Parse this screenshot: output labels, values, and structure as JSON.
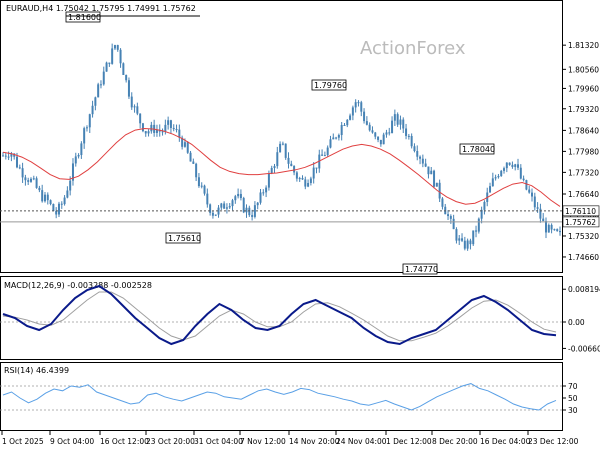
{
  "watermark": "ActionForex",
  "chart_data": {
    "type": "candlestick",
    "symbol_header": "EURAUD,H4  1.75042 1.75795 1.74991 1.75762",
    "price_axis": {
      "min": 1.7425,
      "max": 1.823,
      "ticks": [
        "1.81320",
        "1.80560",
        "1.79960",
        "1.79320",
        "1.78640",
        "1.77980",
        "1.77320",
        "1.76640",
        "1.75980",
        "1.75320",
        "1.74660"
      ],
      "tick_values": [
        1.8132,
        1.8056,
        1.7996,
        1.7932,
        1.7864,
        1.7798,
        1.7732,
        1.7664,
        1.7598,
        1.7532,
        1.7466
      ]
    },
    "x_labels": [
      "1 Oct 2025",
      "9 Oct 04:00",
      "16 Oct 12:00",
      "23 Oct 20:00",
      "31 Oct 04:00",
      "7 Nov 12:00",
      "14 Nov 20:00",
      "24 Nov 04:00",
      "1 Dec 12:00",
      "8 Dec 20:00",
      "16 Dec 04:00",
      "23 Dec 12:00"
    ],
    "pivot_labels": [
      {
        "text": "1.81600",
        "value": 1.816
      },
      {
        "text": "1.79760",
        "value": 1.7976
      },
      {
        "text": "1.78040",
        "value": 1.7804
      },
      {
        "text": "1.75610",
        "value": 1.7561
      },
      {
        "text": "1.74770",
        "value": 1.7477
      }
    ],
    "price_tags": [
      {
        "text": "1.76110",
        "value": 1.7611
      },
      {
        "text": "1.75762",
        "value": 1.75762
      }
    ],
    "close_series": [
      1.7785,
      1.78,
      1.775,
      1.772,
      1.77,
      1.766,
      1.764,
      1.76,
      1.764,
      1.772,
      1.78,
      1.788,
      1.795,
      1.802,
      1.808,
      1.814,
      1.805,
      1.796,
      1.79,
      1.786,
      1.787,
      1.786,
      1.788,
      1.786,
      1.782,
      1.776,
      1.77,
      1.764,
      1.76,
      1.762,
      1.764,
      1.766,
      1.762,
      1.76,
      1.764,
      1.77,
      1.776,
      1.782,
      1.776,
      1.772,
      1.77,
      1.773,
      1.777,
      1.78,
      1.784,
      1.788,
      1.792,
      1.796,
      1.79,
      1.785,
      1.782,
      1.786,
      1.79,
      1.788,
      1.784,
      1.78,
      1.776,
      1.772,
      1.766,
      1.76,
      1.754,
      1.75,
      1.751,
      1.756,
      1.764,
      1.77,
      1.774,
      1.777,
      1.776,
      1.77,
      1.766,
      1.761,
      1.756,
      1.754,
      1.7535
    ],
    "ma_series": [
      1.7795,
      1.779,
      1.778,
      1.7765,
      1.7745,
      1.7725,
      1.7712,
      1.771,
      1.772,
      1.774,
      1.7765,
      1.7795,
      1.7825,
      1.785,
      1.7865,
      1.787,
      1.7868,
      1.7862,
      1.7852,
      1.7838,
      1.782,
      1.7795,
      1.777,
      1.7748,
      1.7735,
      1.7728,
      1.7725,
      1.7725,
      1.7728,
      1.773,
      1.7735,
      1.774,
      1.7748,
      1.776,
      1.7775,
      1.779,
      1.7805,
      1.7815,
      1.782,
      1.7815,
      1.7805,
      1.779,
      1.777,
      1.7748,
      1.7725,
      1.77,
      1.7675,
      1.7655,
      1.764,
      1.7632,
      1.7635,
      1.7648,
      1.7665,
      1.7682,
      1.7695,
      1.77,
      1.769,
      1.767,
      1.7645,
      1.7625
    ],
    "macd": {
      "label": "MACD(12,26,9) -0.003288 -0.002528",
      "ticks": [
        "0.008194",
        "0.00",
        "-0.006604"
      ],
      "tick_values": [
        0.008194,
        0.0,
        -0.006604
      ],
      "min": -0.0085,
      "max": 0.0095,
      "main": [
        0.002,
        0.001,
        -0.001,
        -0.002,
        -0.0005,
        0.003,
        0.006,
        0.008,
        0.009,
        0.007,
        0.004,
        0.001,
        -0.0015,
        -0.004,
        -0.0055,
        -0.0045,
        -0.001,
        0.002,
        0.0045,
        0.003,
        0.0005,
        -0.0015,
        -0.002,
        -0.001,
        0.002,
        0.0045,
        0.0055,
        0.004,
        0.0025,
        0.001,
        -0.0015,
        -0.0035,
        -0.005,
        -0.0055,
        -0.004,
        -0.003,
        -0.002,
        0.0005,
        0.003,
        0.0055,
        0.0065,
        0.005,
        0.003,
        0.0005,
        -0.002,
        -0.003,
        -0.0033
      ],
      "signal": [
        0.0015,
        0.0012,
        0.0005,
        -0.0005,
        -0.0008,
        0.0005,
        0.003,
        0.0055,
        0.0075,
        0.0075,
        0.006,
        0.0035,
        0.001,
        -0.0015,
        -0.0035,
        -0.0045,
        -0.0035,
        -0.001,
        0.0015,
        0.003,
        0.002,
        0.0,
        -0.0012,
        -0.0012,
        0.0,
        0.0025,
        0.0045,
        0.0048,
        0.0038,
        0.0022,
        0.0005,
        -0.0015,
        -0.0035,
        -0.0047,
        -0.0047,
        -0.0038,
        -0.0028,
        -0.001,
        0.0012,
        0.0035,
        0.0052,
        0.0055,
        0.0042,
        0.0022,
        0.0,
        -0.0018,
        -0.0025
      ]
    },
    "rsi": {
      "label": "RSI(14) 46.4399",
      "ticks": [
        "70",
        "50",
        "30"
      ],
      "tick_values": [
        70,
        50,
        30
      ],
      "min": 0,
      "max": 100,
      "values": [
        55,
        60,
        50,
        42,
        48,
        58,
        65,
        62,
        70,
        68,
        72,
        60,
        55,
        50,
        45,
        40,
        42,
        55,
        58,
        52,
        48,
        45,
        50,
        55,
        60,
        58,
        52,
        50,
        48,
        55,
        62,
        65,
        60,
        56,
        60,
        66,
        64,
        58,
        55,
        52,
        48,
        45,
        40,
        38,
        42,
        46,
        40,
        35,
        30,
        36,
        44,
        52,
        58,
        64,
        70,
        74,
        66,
        62,
        55,
        48,
        40,
        35,
        32,
        30,
        40,
        46
      ],
      "levels": [
        70,
        30
      ]
    }
  },
  "colors": {
    "bull": "#4682B4",
    "bear": "#4682B4",
    "ma": "#E04040",
    "macd_main": "#0A1A8A",
    "macd_signal": "#A0A0A0",
    "rsi": "#5AA0E6",
    "grid": "#CCCCCC",
    "text": "#000000"
  }
}
